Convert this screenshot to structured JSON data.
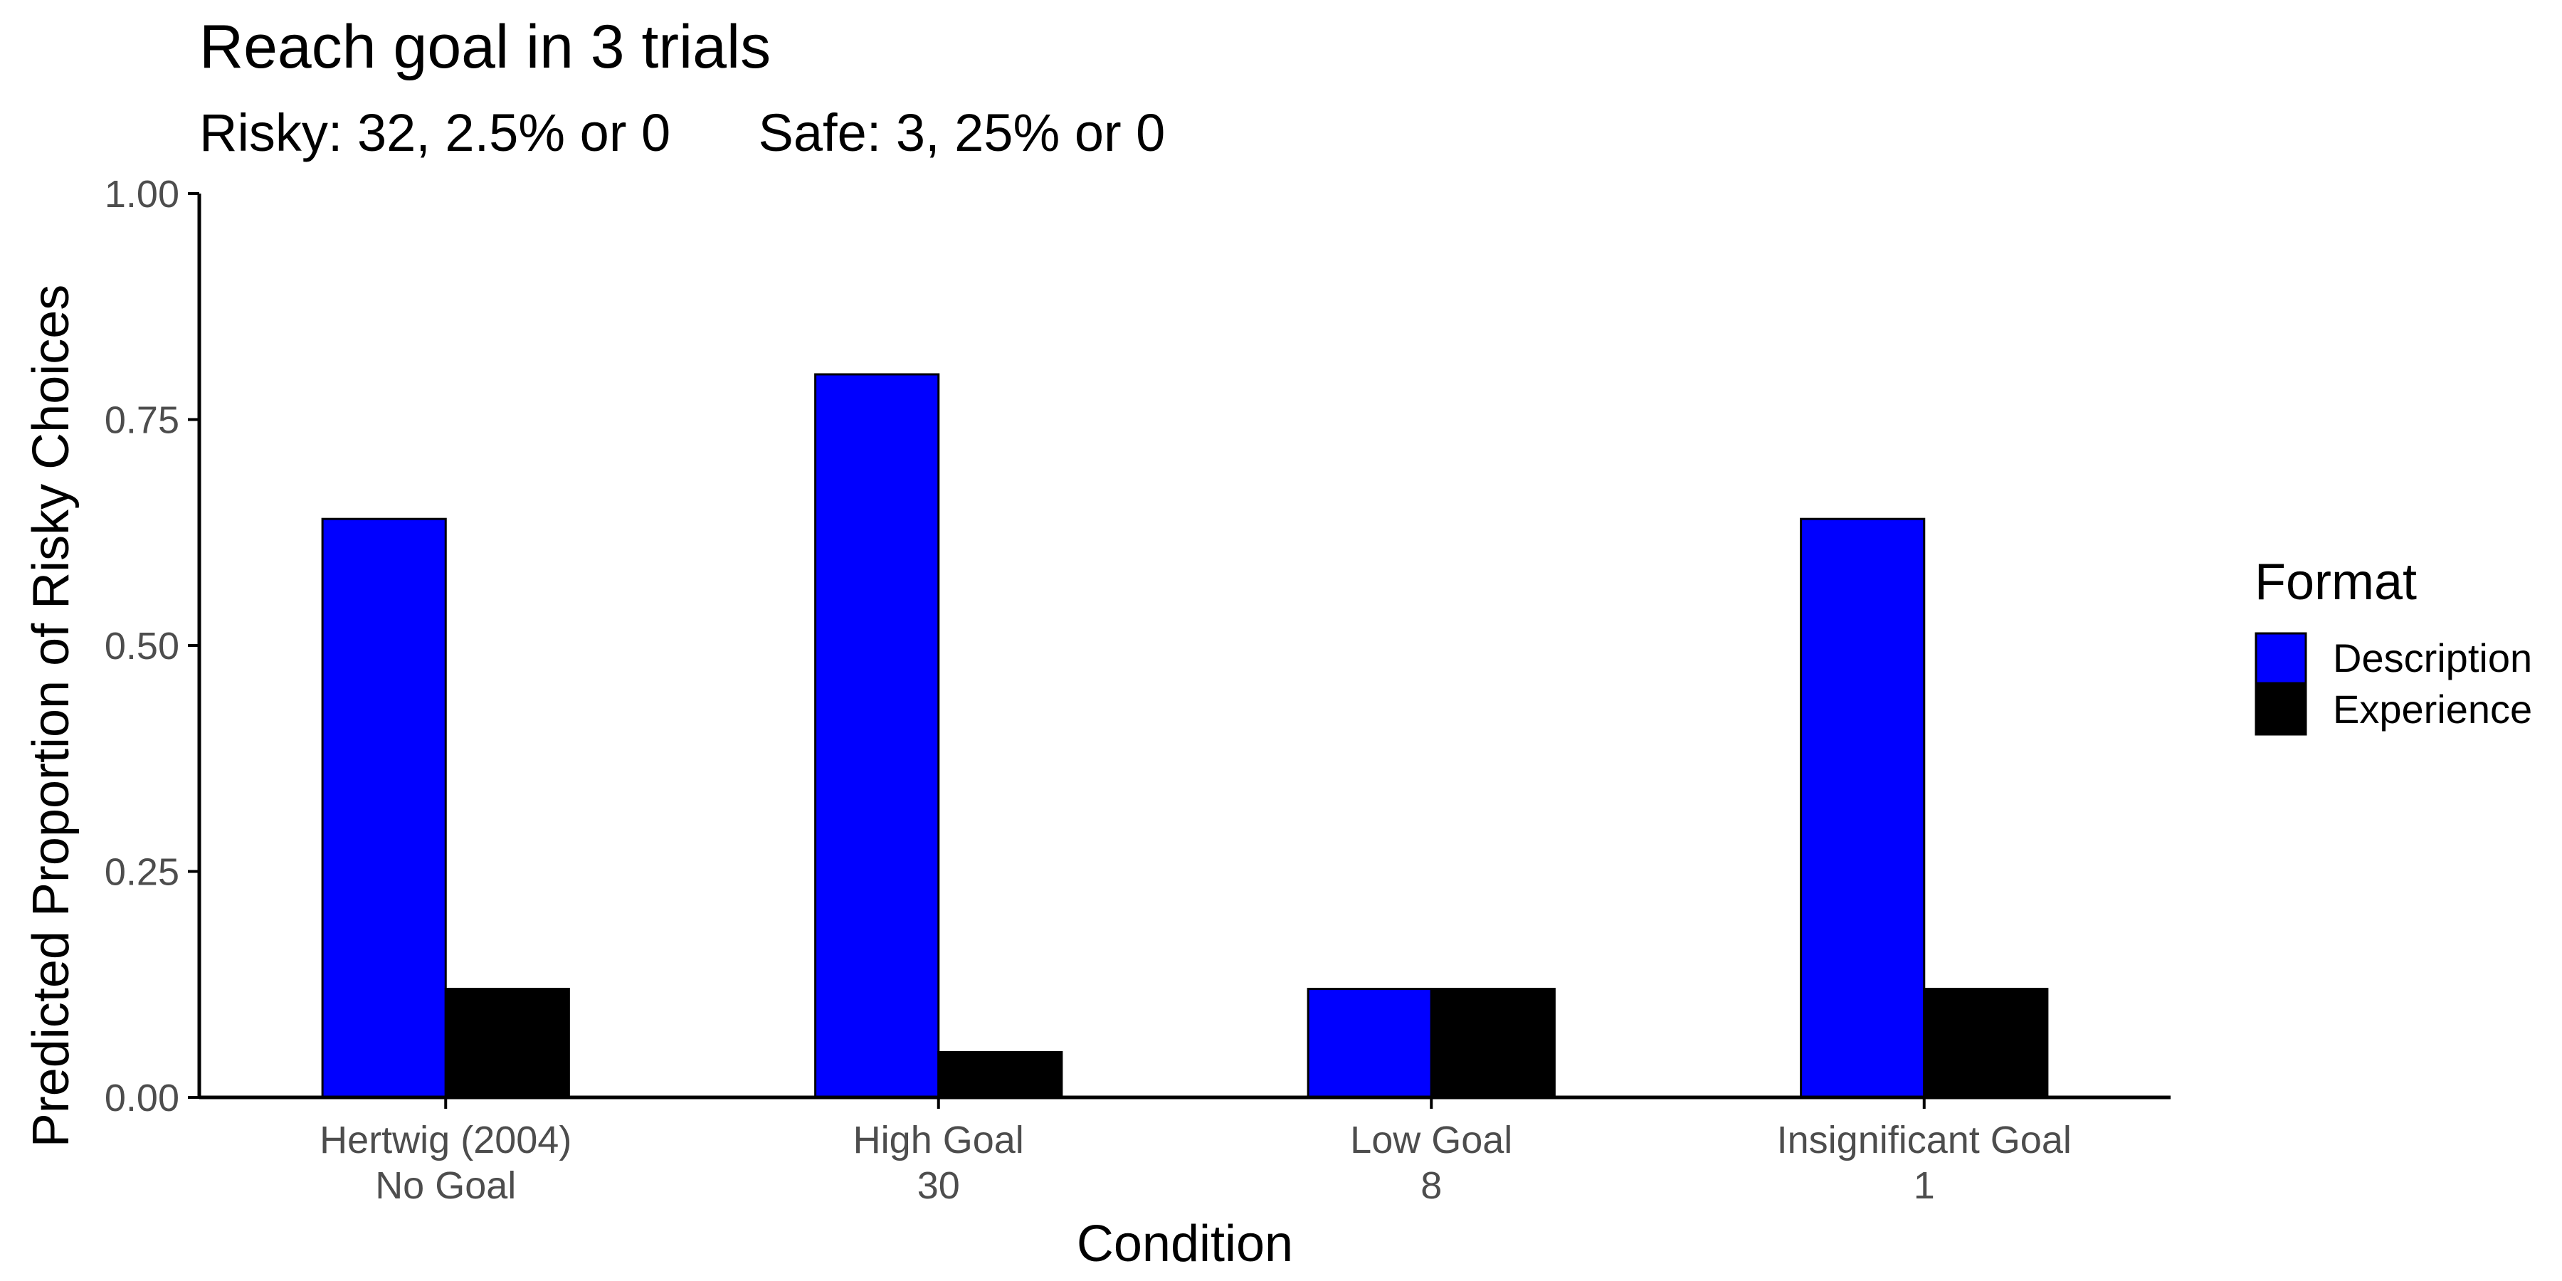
{
  "chart_data": {
    "type": "bar",
    "title": "Reach goal in 3 trials",
    "subtitle": "Risky: 32, 2.5% or 0      Safe: 3, 25% or 0",
    "xlabel": "Condition",
    "ylabel": "Predicted Proportion of Risky Choices",
    "ylim": [
      0,
      1
    ],
    "yticks": [
      "0.00",
      "0.25",
      "0.50",
      "0.75",
      "1.00"
    ],
    "ytick_values": [
      0,
      0.25,
      0.5,
      0.75,
      1
    ],
    "categories": [
      [
        "Hertwig (2004)",
        "No Goal"
      ],
      [
        "High Goal",
        "30"
      ],
      [
        "Low Goal",
        "8"
      ],
      [
        "Insignificant Goal",
        "1"
      ]
    ],
    "series": [
      {
        "name": "Description",
        "color": "#0000ff",
        "values": [
          0.64,
          0.8,
          0.12,
          0.64
        ]
      },
      {
        "name": "Experience",
        "color": "#000000",
        "values": [
          0.12,
          0.05,
          0.12,
          0.12
        ]
      }
    ],
    "legend": {
      "title": "Format",
      "position": "right"
    },
    "grid": false
  }
}
